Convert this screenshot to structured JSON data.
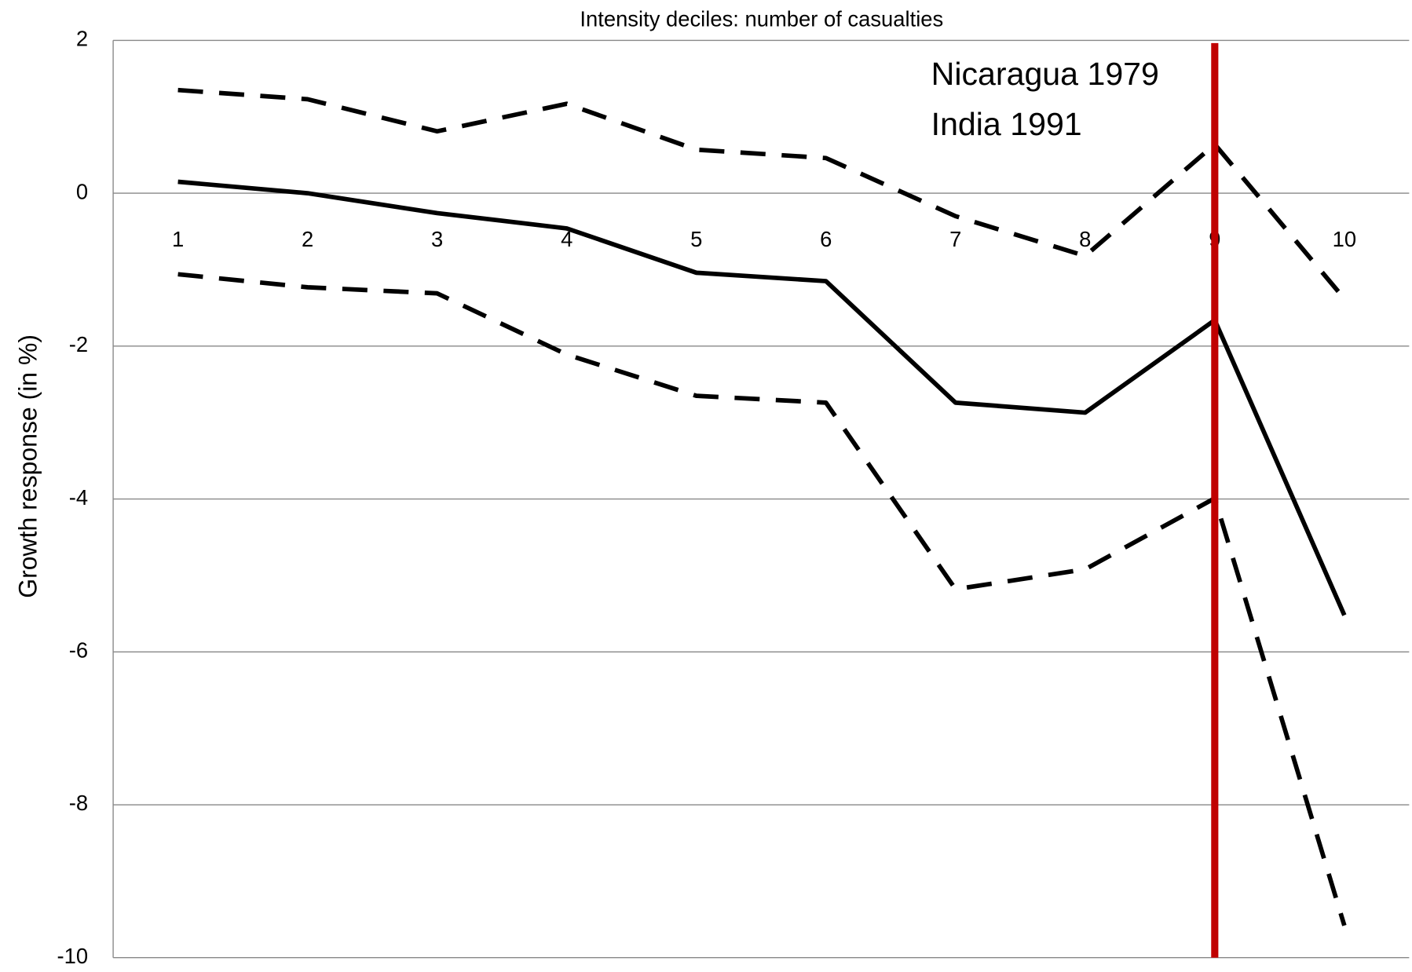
{
  "chart_data": {
    "type": "line",
    "title": "Intensity deciles: number of casualties",
    "ylabel": "Growth response (in %)",
    "x": [
      1,
      2,
      3,
      4,
      5,
      6,
      7,
      8,
      9,
      10
    ],
    "xlim": [
      0.5,
      10.5
    ],
    "xticks": [
      1,
      2,
      3,
      4,
      5,
      6,
      7,
      8,
      9,
      10
    ],
    "ylim": [
      -10,
      2
    ],
    "yticks": [
      -10,
      -8,
      -6,
      -4,
      -2,
      0,
      2
    ],
    "grid": true,
    "series": [
      {
        "color": "#000000",
        "style": "solid",
        "values": [
          0.15,
          0,
          -0.26,
          -0.46,
          -1.04,
          -1.15,
          -2.74,
          -2.87,
          -1.66,
          -5.52
        ]
      },
      {
        "color": "#000000",
        "style": "dashed",
        "values": [
          1.35,
          1.23,
          0.81,
          1.17,
          0.57,
          0.46,
          -0.3,
          -0.82,
          0.64,
          -1.38
        ]
      },
      {
        "color": "#000000",
        "style": "dashed",
        "values": [
          -1.06,
          -1.23,
          -1.31,
          -2.11,
          -2.65,
          -2.74,
          -5.18,
          -4.92,
          -3.99,
          -9.58
        ]
      }
    ],
    "vline": {
      "x": 9,
      "color": "#c00000"
    },
    "annotations": [
      {
        "text": "Nicaragua 1979",
        "color": "#ff0000"
      },
      {
        "text": "India 1991",
        "color": "#ff0000"
      }
    ]
  }
}
